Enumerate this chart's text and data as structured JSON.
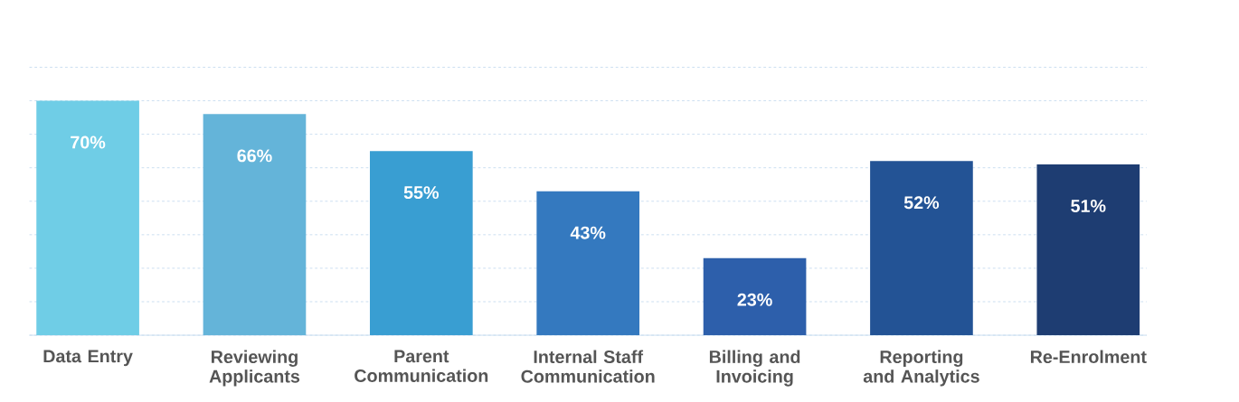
{
  "chart_data": {
    "type": "bar",
    "categories": [
      "Data Entry",
      "Reviewing Applicants",
      "Parent Communication",
      "Internal Staff Communication",
      "Billing and Invoicing",
      "Reporting and Analytics",
      "Re-Enrolment"
    ],
    "values": [
      70,
      66,
      55,
      43,
      23,
      52,
      51
    ],
    "value_labels": [
      "70%",
      "66%",
      "55%",
      "43%",
      "23%",
      "52%",
      "51%"
    ],
    "colors": [
      "#6fcde6",
      "#64b4d9",
      "#399ed2",
      "#3479bf",
      "#2d5fab",
      "#235395",
      "#1e3d72"
    ],
    "grid": "y",
    "tick_labels": "x"
  }
}
